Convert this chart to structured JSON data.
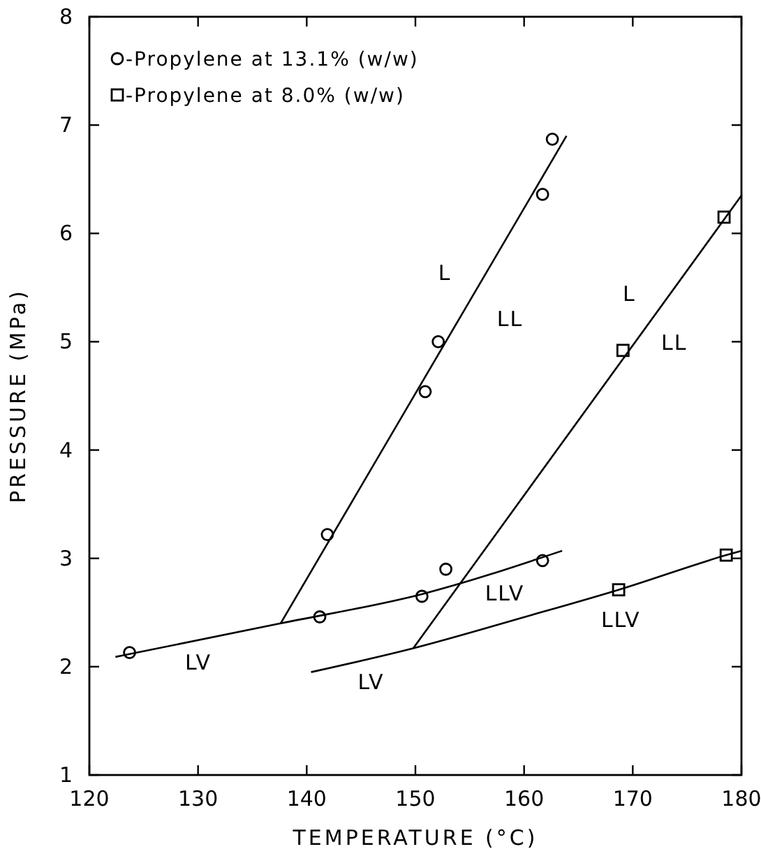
{
  "chart_data": {
    "type": "scatter",
    "xlabel": "TEMPERATURE (°C)",
    "ylabel": "PRESSURE (MPa)",
    "xlim": [
      120,
      180
    ],
    "ylim": [
      1,
      8
    ],
    "xticks": [
      120,
      130,
      140,
      150,
      160,
      170,
      180
    ],
    "yticks": [
      1,
      2,
      3,
      4,
      5,
      6,
      7,
      8
    ],
    "grid": false,
    "legend": "top left",
    "series": [
      {
        "name": "-Propylene at 13.1% (w/w)",
        "marker": "circle",
        "color": "#000000",
        "x": [
          123.7,
          141.2,
          150.6,
          152.8,
          161.7,
          141.9,
          150.9,
          152.1,
          161.7,
          162.6
        ],
        "values": [
          2.13,
          2.46,
          2.65,
          2.9,
          2.98,
          3.22,
          4.54,
          5.0,
          6.36,
          6.87
        ]
      },
      {
        "name": "-Propylene at 8.0% (w/w)",
        "marker": "square",
        "color": "#000000",
        "x": [
          168.7,
          178.6,
          169.1,
          178.4
        ],
        "values": [
          2.71,
          3.03,
          4.92,
          6.15
        ]
      },
      {
        "type": "line",
        "marker": "none",
        "color": "#000000",
        "x": [
          122.4,
          137.6,
          150.6,
          163.5
        ],
        "values": [
          2.09,
          2.4,
          2.67,
          3.07
        ]
      },
      {
        "type": "line",
        "marker": "none",
        "color": "#000000",
        "x": [
          137.6,
          163.9
        ],
        "values": [
          2.4,
          6.9
        ]
      },
      {
        "type": "line",
        "marker": "none",
        "color": "#000000",
        "x": [
          140.4,
          149.8,
          160.1,
          168.7,
          178.6,
          180
        ],
        "values": [
          1.95,
          2.17,
          2.46,
          2.71,
          3.03,
          3.07
        ]
      },
      {
        "type": "line",
        "marker": "none",
        "color": "#000000",
        "x": [
          149.8,
          180
        ],
        "values": [
          2.17,
          6.35
        ]
      }
    ],
    "annotations": [
      "L",
      "LL",
      "L",
      "LL",
      "LLV",
      "LLV",
      "LV",
      "LV"
    ]
  }
}
